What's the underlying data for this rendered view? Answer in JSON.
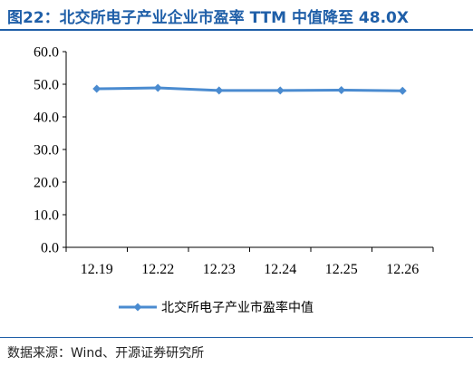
{
  "figure": {
    "title": "图22：北交所电子产业企业市盈率 TTM 中值降至 48.0X",
    "source": "数据来源：Wind、开源证券研究所"
  },
  "chart_data": {
    "type": "line",
    "categories": [
      "12.19",
      "12.22",
      "12.23",
      "12.24",
      "12.25",
      "12.26"
    ],
    "series": [
      {
        "name": "北交所电子产业市盈率中值",
        "values": [
          48.6,
          48.9,
          48.1,
          48.1,
          48.2,
          48.0
        ],
        "color": "#4a8bd0"
      }
    ],
    "ylim": [
      0,
      60
    ],
    "yticks": [
      "0.0",
      "10.0",
      "20.0",
      "30.0",
      "40.0",
      "50.0",
      "60.0"
    ],
    "ytick_values": [
      0,
      10,
      20,
      30,
      40,
      50,
      60
    ],
    "grid": false,
    "legend": "bottom"
  }
}
